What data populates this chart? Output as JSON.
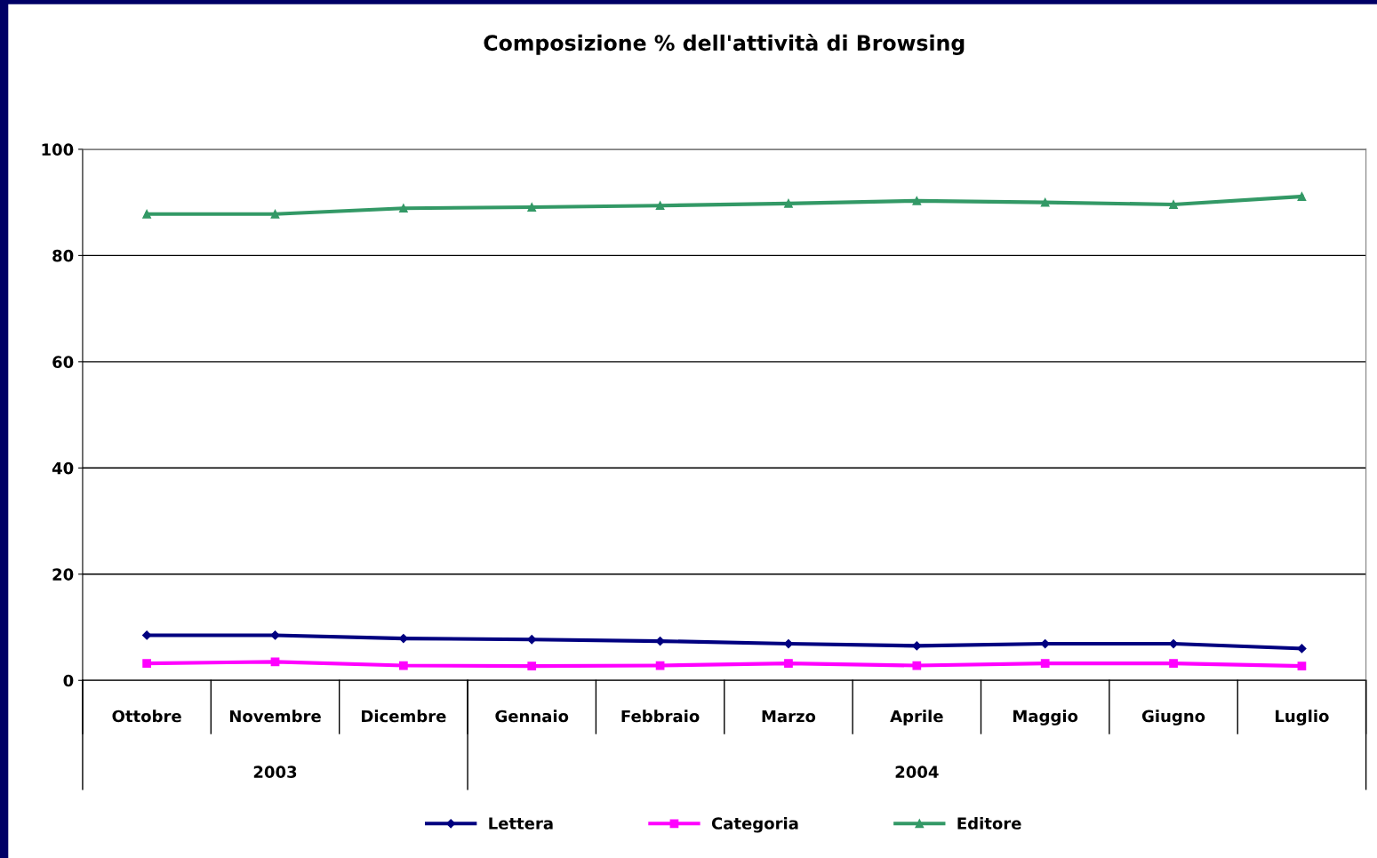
{
  "chart_data": {
    "type": "line",
    "title": "Composizione % dell'attività di Browsing",
    "categories": [
      "Ottobre",
      "Novembre",
      "Dicembre",
      "Gennaio",
      "Febbraio",
      "Marzo",
      "Aprile",
      "Maggio",
      "Giugno",
      "Luglio"
    ],
    "series": [
      {
        "name": "Lettera",
        "color": "#000080",
        "marker": "diamond",
        "values": [
          8.5,
          8.5,
          7.9,
          7.7,
          7.4,
          6.9,
          6.5,
          6.9,
          6.9,
          6.0
        ]
      },
      {
        "name": "Categoria",
        "color": "#ff00ff",
        "marker": "square",
        "values": [
          3.2,
          3.5,
          2.8,
          2.7,
          2.8,
          3.2,
          2.8,
          3.2,
          3.2,
          2.7
        ]
      },
      {
        "name": "Editore",
        "color": "#339966",
        "marker": "triangle",
        "values": [
          87.8,
          87.8,
          88.9,
          89.1,
          89.4,
          89.8,
          90.3,
          90.0,
          89.6,
          91.1
        ]
      }
    ],
    "annotations": [
      "2003",
      "2004"
    ],
    "ylim": [
      0,
      100
    ],
    "yticks": [
      0,
      20,
      40,
      60,
      80,
      100
    ],
    "grid": "y",
    "legend": "bottom",
    "line_style": "solid"
  }
}
